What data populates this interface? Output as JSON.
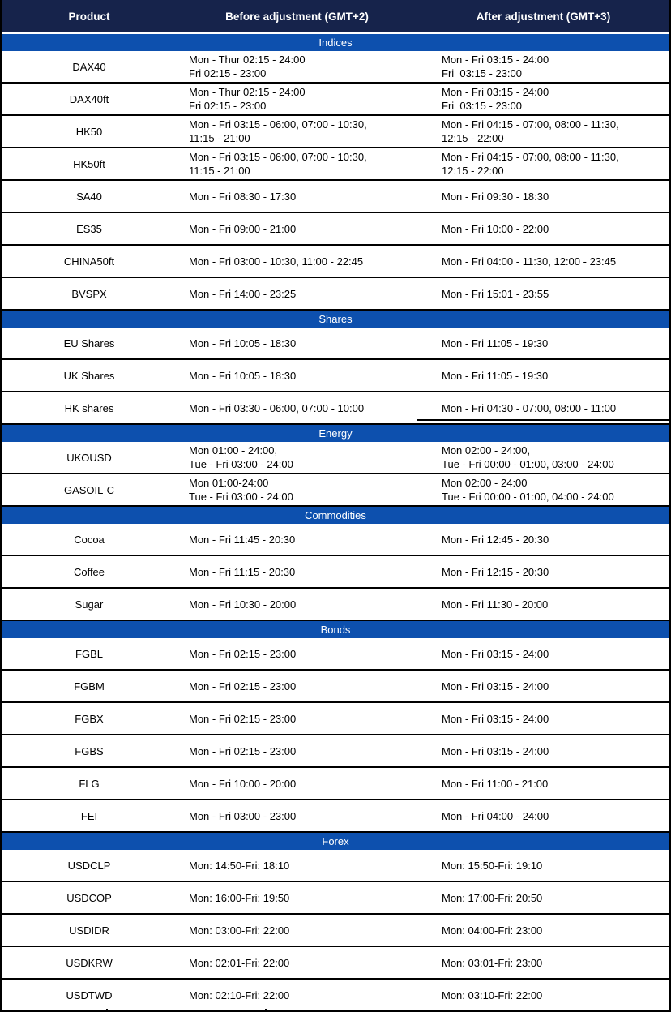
{
  "colors": {
    "header_bg": "#16234B",
    "section_band_bg": "#0D50AE",
    "header_text": "#FFFFFF",
    "body_text": "#000000",
    "row_divider": "#000000"
  },
  "table": {
    "columns": [
      "Product",
      "Before adjustment (GMT+2)",
      "After adjustment (GMT+3)"
    ],
    "sections": [
      {
        "name": "Indices",
        "rows": [
          {
            "product": "DAX40",
            "before": "Mon - Thur 02:15 - 24:00\nFri 02:15 - 23:00",
            "after": "Mon - Fri 03:15 - 24:00\nFri  03:15 - 23:00"
          },
          {
            "product": "DAX40ft",
            "before": "Mon - Thur 02:15 - 24:00\nFri 02:15 - 23:00",
            "after": "Mon - Fri 03:15 - 24:00\nFri  03:15 - 23:00"
          },
          {
            "product": "HK50",
            "before": "Mon - Fri 03:15 - 06:00, 07:00 - 10:30,\n11:15 - 21:00",
            "after": "Mon - Fri 04:15 - 07:00, 08:00 - 11:30,\n12:15 - 22:00"
          },
          {
            "product": "HK50ft",
            "before": "Mon - Fri 03:15 - 06:00, 07:00 - 10:30,\n11:15 - 21:00",
            "after": "Mon - Fri 04:15 - 07:00, 08:00 - 11:30,\n12:15 - 22:00"
          },
          {
            "product": "SA40",
            "before": "Mon - Fri 08:30 - 17:30",
            "after": "Mon - Fri 09:30 - 18:30"
          },
          {
            "product": "ES35",
            "before": "Mon - Fri 09:00 - 21:00",
            "after": "Mon - Fri 10:00 - 22:00"
          },
          {
            "product": "CHINA50ft",
            "before": "Mon - Fri 03:00 - 10:30, 11:00 - 22:45",
            "after": "Mon - Fri 04:00 - 11:30, 12:00 - 23:45"
          },
          {
            "product": "BVSPX",
            "before": "Mon - Fri 14:00 - 23:25",
            "after": "Mon - Fri 15:01 - 23:55"
          }
        ]
      },
      {
        "name": "Shares",
        "rows": [
          {
            "product": "EU Shares",
            "before": "Mon - Fri 10:05 - 18:30",
            "after": "Mon - Fri 11:05 - 19:30"
          },
          {
            "product": "UK Shares",
            "before": "Mon - Fri 10:05 - 18:30",
            "after": "Mon - Fri 11:05 - 19:30"
          },
          {
            "product": "HK shares",
            "before": "Mon - Fri 03:30 - 06:00, 07:00 - 10:00",
            "after": "Mon - Fri 04:30 - 07:00, 08:00 - 11:00"
          }
        ]
      },
      {
        "name": "Energy",
        "rows": [
          {
            "product": "UKOUSD",
            "before": "Mon 01:00 - 24:00,\nTue - Fri 03:00 - 24:00",
            "after": "Mon 02:00 - 24:00,\nTue - Fri 00:00 - 01:00, 03:00 - 24:00"
          },
          {
            "product": "GASOIL-C",
            "before": "Mon 01:00-24:00\nTue - Fri 03:00 - 24:00",
            "after": "Mon 02:00 - 24:00\nTue - Fri 00:00 - 01:00, 04:00 - 24:00"
          }
        ]
      },
      {
        "name": "Commodities",
        "rows": [
          {
            "product": "Cocoa",
            "before": "Mon - Fri 11:45 - 20:30",
            "after": "Mon - Fri 12:45 - 20:30"
          },
          {
            "product": "Coffee",
            "before": "Mon - Fri 11:15 - 20:30",
            "after": "Mon - Fri 12:15 - 20:30"
          },
          {
            "product": "Sugar",
            "before": "Mon - Fri 10:30 - 20:00",
            "after": "Mon - Fri 11:30 - 20:00"
          }
        ]
      },
      {
        "name": "Bonds",
        "rows": [
          {
            "product": "FGBL",
            "before": "Mon - Fri 02:15 - 23:00",
            "after": "Mon - Fri 03:15 - 24:00"
          },
          {
            "product": "FGBM",
            "before": "Mon - Fri 02:15 - 23:00",
            "after": "Mon - Fri 03:15 - 24:00"
          },
          {
            "product": "FGBX",
            "before": "Mon - Fri 02:15 - 23:00",
            "after": "Mon - Fri 03:15 - 24:00"
          },
          {
            "product": "FGBS",
            "before": "Mon - Fri 02:15 - 23:00",
            "after": "Mon - Fri 03:15 - 24:00"
          },
          {
            "product": "FLG",
            "before": "Mon - Fri 10:00 - 20:00",
            "after": "Mon - Fri 11:00 - 21:00"
          },
          {
            "product": "FEI",
            "before": "Mon - Fri 03:00 - 23:00",
            "after": "Mon - Fri 04:00 - 24:00"
          }
        ]
      },
      {
        "name": "Forex",
        "rows": [
          {
            "product": "USDCLP",
            "before": "Mon: 14:50-Fri: 18:10",
            "after": "Mon: 15:50-Fri: 19:10"
          },
          {
            "product": "USDCOP",
            "before": "Mon: 16:00-Fri: 19:50",
            "after": "Mon: 17:00-Fri: 20:50"
          },
          {
            "product": "USDIDR",
            "before": "Mon: 03:00-Fri: 22:00",
            "after": "Mon: 04:00-Fri: 23:00"
          },
          {
            "product": "USDKRW",
            "before": "Mon: 02:01-Fri: 22:00",
            "after": "Mon: 03:01-Fri: 23:00"
          },
          {
            "product": "USDTWD",
            "before": "Mon: 02:10-Fri: 22:00",
            "after": "Mon: 03:10-Fri: 22:00"
          }
        ]
      }
    ]
  }
}
